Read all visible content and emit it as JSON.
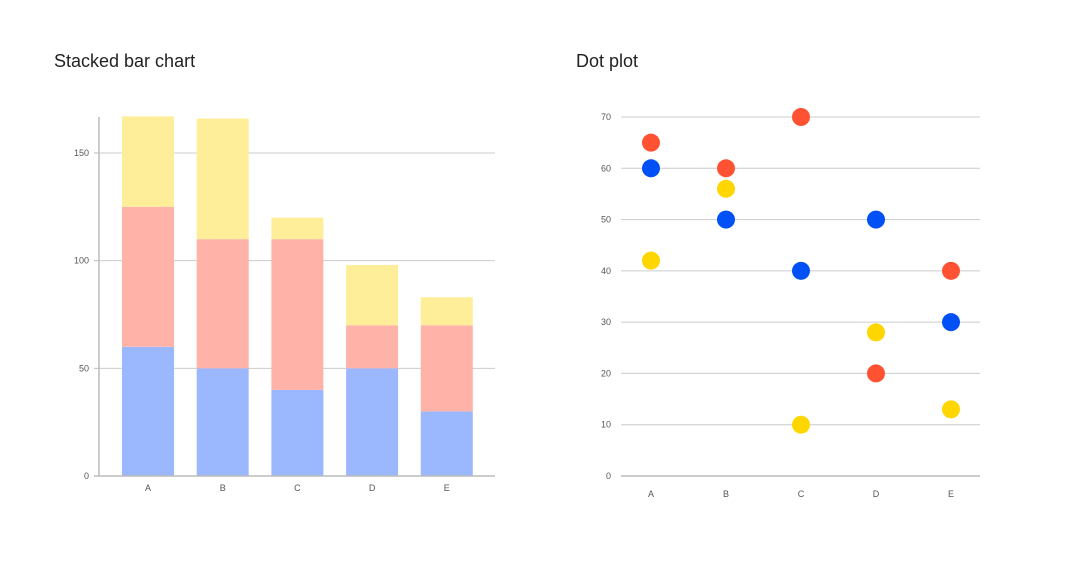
{
  "chart_data": [
    {
      "type": "bar",
      "stacked": true,
      "title": "Stacked bar chart",
      "categories": [
        "A",
        "B",
        "C",
        "D",
        "E"
      ],
      "series": [
        {
          "values": [
            60,
            50,
            40,
            50,
            30
          ],
          "color": "#9BB8FF"
        },
        {
          "values": [
            65,
            60,
            70,
            20,
            40
          ],
          "color": "#FFB2A8"
        },
        {
          "values": [
            42,
            56,
            10,
            28,
            13
          ],
          "color": "#FFEE99"
        }
      ],
      "yticks": [
        0,
        50,
        100,
        150
      ],
      "ylim": [
        0,
        167
      ],
      "grid": true
    },
    {
      "type": "scatter",
      "title": "Dot plot",
      "categories": [
        "A",
        "B",
        "C",
        "D",
        "E"
      ],
      "series": [
        {
          "values": [
            60,
            50,
            40,
            50,
            30
          ],
          "color": "#0050F5"
        },
        {
          "values": [
            65,
            60,
            70,
            20,
            40
          ],
          "color": "#FF5233"
        },
        {
          "values": [
            42,
            56,
            10,
            28,
            13
          ],
          "color": "#FFD600"
        }
      ],
      "yticks": [
        0,
        10,
        20,
        30,
        40,
        50,
        60,
        70
      ],
      "ylim": [
        0,
        70
      ],
      "grid": true
    }
  ]
}
